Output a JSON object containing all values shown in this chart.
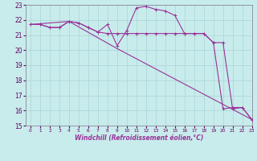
{
  "xlabel": "Windchill (Refroidissement éolien,°C)",
  "xlim": [
    -0.5,
    23
  ],
  "ylim": [
    15,
    23
  ],
  "yticks": [
    15,
    16,
    17,
    18,
    19,
    20,
    21,
    22,
    23
  ],
  "xticks": [
    0,
    1,
    2,
    3,
    4,
    5,
    6,
    7,
    8,
    9,
    10,
    11,
    12,
    13,
    14,
    15,
    16,
    17,
    18,
    19,
    20,
    21,
    22,
    23
  ],
  "bg_color": "#c8ecec",
  "grid_color": "#b0d8d8",
  "line_color": "#993399",
  "series1_x": [
    0,
    1,
    2,
    3,
    4,
    5,
    6,
    7,
    8,
    9,
    10,
    11,
    12,
    13,
    14,
    15,
    16,
    17,
    18,
    19,
    20,
    21,
    22,
    23
  ],
  "series1_y": [
    21.7,
    21.7,
    21.5,
    21.5,
    21.9,
    21.8,
    21.5,
    21.2,
    21.7,
    20.3,
    21.3,
    22.8,
    22.9,
    22.7,
    22.6,
    22.3,
    21.1,
    21.1,
    21.1,
    20.5,
    20.5,
    16.1,
    16.2,
    15.4
  ],
  "series2_x": [
    0,
    1,
    2,
    3,
    4,
    5,
    6,
    7,
    8,
    9,
    10,
    11,
    12,
    13,
    14,
    15,
    16,
    17,
    18,
    19,
    20,
    21,
    22,
    23
  ],
  "series2_y": [
    21.7,
    21.7,
    21.5,
    21.5,
    21.9,
    21.8,
    21.5,
    21.2,
    21.1,
    21.1,
    21.1,
    21.1,
    21.1,
    21.1,
    21.1,
    21.1,
    21.1,
    21.1,
    21.1,
    20.5,
    16.1,
    16.2,
    16.2,
    15.4
  ],
  "series3_x": [
    0,
    4,
    9,
    23
  ],
  "series3_y": [
    21.7,
    21.9,
    20.1,
    15.4
  ]
}
